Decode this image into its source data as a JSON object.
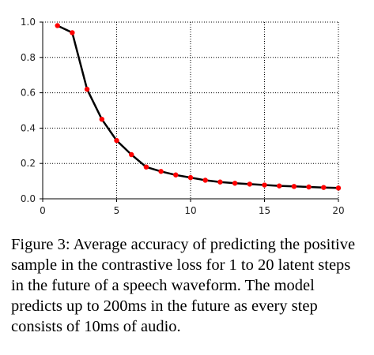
{
  "chart_data": {
    "type": "line",
    "title": "",
    "xlabel": "",
    "ylabel": "",
    "xlim": [
      0,
      20
    ],
    "ylim": [
      0.0,
      1.0
    ],
    "x_ticks": [
      "0",
      "5",
      "10",
      "15",
      "20"
    ],
    "y_ticks": [
      "0.0",
      "0.2",
      "0.4",
      "0.6",
      "0.8",
      "1.0"
    ],
    "grid": true,
    "series": [
      {
        "x": [
          1,
          2,
          3,
          4,
          5,
          6,
          7,
          8,
          9,
          10,
          11,
          12,
          13,
          14,
          15,
          16,
          17,
          18,
          19,
          20
        ],
        "values": [
          0.98,
          0.94,
          0.62,
          0.45,
          0.33,
          0.25,
          0.18,
          0.155,
          0.135,
          0.12,
          0.105,
          0.095,
          0.088,
          0.083,
          0.078,
          0.073,
          0.07,
          0.067,
          0.064,
          0.061
        ],
        "line_color": "#000000",
        "marker_color": "#ff0000"
      }
    ]
  },
  "caption": "Figure 3: Average accuracy of predicting the positive sample in the contrastive loss for 1 to 20 latent steps in the future of a speech waveform. The model predicts up to 200ms in the future as every step consists of 10ms of audio."
}
